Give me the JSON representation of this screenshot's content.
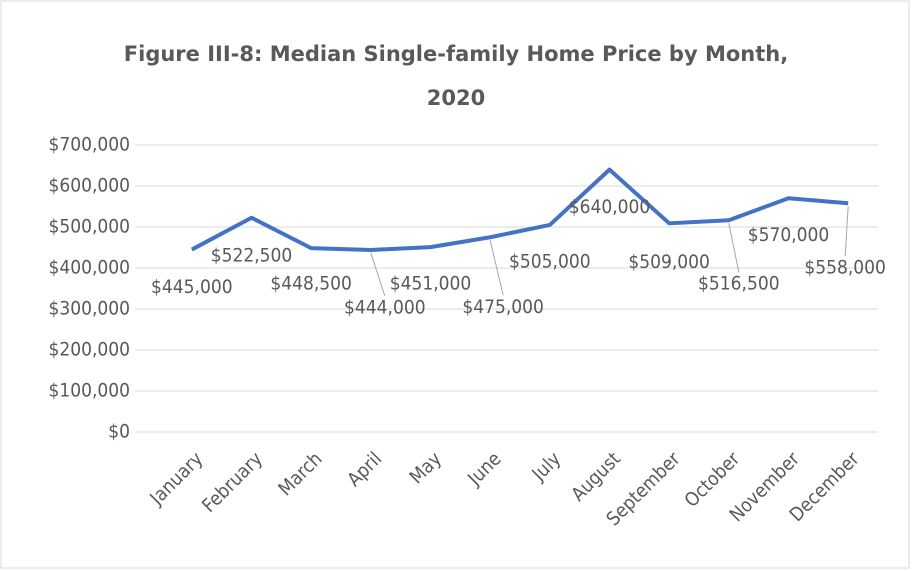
{
  "chart_data": {
    "type": "line",
    "title": "Figure III-8: Median Single-family Home Price by Month, 2020",
    "categories": [
      "January",
      "February",
      "March",
      "April",
      "May",
      "June",
      "July",
      "August",
      "September",
      "October",
      "November",
      "December"
    ],
    "series": [
      {
        "name": "Median Single-family Home Price",
        "color": "#4472c4",
        "values": [
          445000,
          522500,
          448500,
          444000,
          451000,
          475000,
          505000,
          640000,
          509000,
          516500,
          570000,
          558000
        ],
        "value_labels": [
          "$445,000",
          "$522,500",
          "$448,500",
          "$444,000",
          "$451,000",
          "$475,000",
          "$505,000",
          "$640,000",
          "$509,000",
          "$516,500",
          "$570,000",
          "$558,000"
        ]
      }
    ],
    "ylim": [
      0,
      700000
    ],
    "yticks": [
      {
        "value": 0,
        "label": "$0"
      },
      {
        "value": 100000,
        "label": "$100,000"
      },
      {
        "value": 200000,
        "label": "$200,000"
      },
      {
        "value": 300000,
        "label": "$300,000"
      },
      {
        "value": 400000,
        "label": "$400,000"
      },
      {
        "value": 500000,
        "label": "$500,000"
      },
      {
        "value": 600000,
        "label": "$600,000"
      },
      {
        "value": 700000,
        "label": "$700,000"
      }
    ],
    "grid": true
  }
}
